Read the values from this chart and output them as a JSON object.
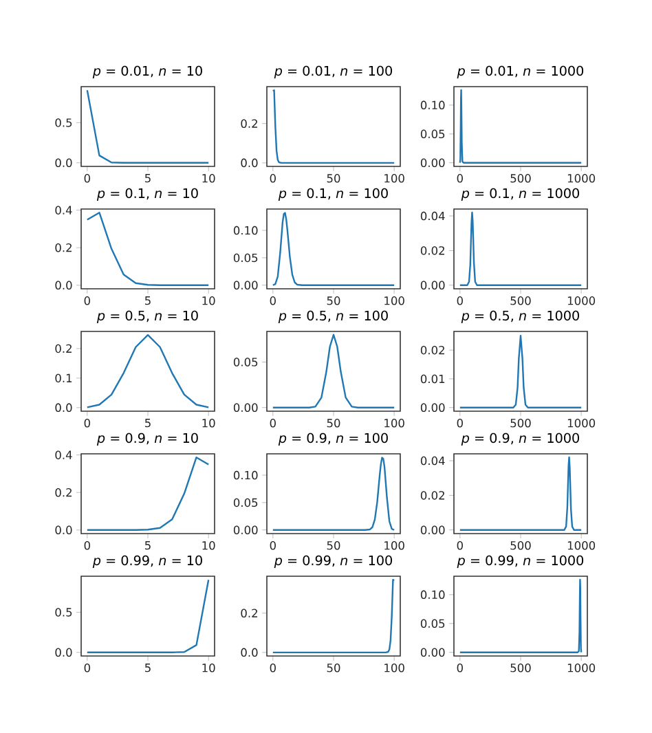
{
  "chart_data": [
    {
      "type": "line",
      "title": "*p* = 0.01, *n* = 10",
      "color": "#1f77b4",
      "x": [
        0,
        1,
        2,
        3,
        4,
        5,
        6,
        7,
        8,
        9,
        10
      ],
      "values": [
        0.904,
        0.091,
        0.004,
        0,
        0,
        0,
        0,
        0,
        0,
        0,
        0
      ],
      "xlim": [
        -0.5,
        10.5
      ],
      "ylim": [
        -0.045,
        0.949
      ],
      "xticks": [
        0,
        5,
        10
      ],
      "yticks": [
        {
          "value": 0,
          "label": "0.0"
        },
        {
          "value": 0.5,
          "label": "0.5"
        }
      ]
    },
    {
      "type": "line",
      "title": "*p* = 0.01, *n* = 100",
      "color": "#1f77b4",
      "x": [
        0,
        1,
        2,
        3,
        4,
        5,
        7,
        100
      ],
      "values": [
        0.366,
        0.37,
        0.185,
        0.061,
        0.015,
        0.003,
        0,
        0
      ],
      "xlim": [
        -5,
        105
      ],
      "ylim": [
        -0.018,
        0.388
      ],
      "xticks": [
        0,
        50,
        100
      ],
      "yticks": [
        {
          "value": 0,
          "label": "0.0"
        },
        {
          "value": 0.2,
          "label": "0.2"
        }
      ]
    },
    {
      "type": "line",
      "title": "*p* = 0.01, *n* = 1000",
      "color": "#1f77b4",
      "x": [
        0,
        3,
        6,
        8,
        10,
        12,
        15,
        20,
        30,
        1000
      ],
      "values": [
        0,
        0.007,
        0.063,
        0.113,
        0.126,
        0.095,
        0.035,
        0.002,
        0,
        0
      ],
      "xlim": [
        -50,
        1050
      ],
      "ylim": [
        -0.0063,
        0.132
      ],
      "xticks": [
        0,
        500,
        1000
      ],
      "yticks": [
        {
          "value": 0,
          "label": "0.00"
        },
        {
          "value": 0.05,
          "label": "0.05"
        },
        {
          "value": 0.1,
          "label": "0.10"
        }
      ]
    },
    {
      "type": "line",
      "title": "*p* = 0.1, *n* = 10",
      "color": "#1f77b4",
      "x": [
        0,
        1,
        2,
        3,
        4,
        5,
        6,
        7,
        8,
        9,
        10
      ],
      "values": [
        0.349,
        0.387,
        0.194,
        0.057,
        0.011,
        0.002,
        0,
        0,
        0,
        0,
        0
      ],
      "xlim": [
        -0.5,
        10.5
      ],
      "ylim": [
        -0.019,
        0.406
      ],
      "xticks": [
        0,
        5,
        10
      ],
      "yticks": [
        {
          "value": 0,
          "label": "0.0"
        },
        {
          "value": 0.2,
          "label": "0.2"
        },
        {
          "value": 0.4,
          "label": "0.4"
        }
      ]
    },
    {
      "type": "line",
      "title": "*p* = 0.1, *n* = 100",
      "color": "#1f77b4",
      "x": [
        0,
        2,
        4,
        6,
        8,
        9,
        10,
        11,
        12,
        14,
        16,
        18,
        20,
        24,
        100
      ],
      "values": [
        0,
        0.002,
        0.016,
        0.059,
        0.115,
        0.13,
        0.132,
        0.12,
        0.099,
        0.051,
        0.019,
        0.005,
        0.001,
        0,
        0
      ],
      "xlim": [
        -5,
        105
      ],
      "ylim": [
        -0.0066,
        0.139
      ],
      "xticks": [
        0,
        50,
        100
      ],
      "yticks": [
        {
          "value": 0,
          "label": "0.00"
        },
        {
          "value": 0.05,
          "label": "0.05"
        },
        {
          "value": 0.1,
          "label": "0.10"
        }
      ]
    },
    {
      "type": "line",
      "title": "*p* = 0.1, *n* = 1000",
      "color": "#1f77b4",
      "x": [
        0,
        60,
        75,
        85,
        90,
        95,
        100,
        105,
        110,
        115,
        125,
        140,
        1000
      ],
      "values": [
        0,
        0,
        0.002,
        0.012,
        0.024,
        0.036,
        0.042,
        0.037,
        0.025,
        0.013,
        0.002,
        0,
        0
      ],
      "xlim": [
        -50,
        1050
      ],
      "ylim": [
        -0.0021,
        0.044
      ],
      "xticks": [
        0,
        500,
        1000
      ],
      "yticks": [
        {
          "value": 0,
          "label": "0.00"
        },
        {
          "value": 0.02,
          "label": "0.02"
        },
        {
          "value": 0.04,
          "label": "0.04"
        }
      ]
    },
    {
      "type": "line",
      "title": "*p* = 0.5, *n* = 10",
      "color": "#1f77b4",
      "x": [
        0,
        1,
        2,
        3,
        4,
        5,
        6,
        7,
        8,
        9,
        10
      ],
      "values": [
        0.001,
        0.01,
        0.044,
        0.117,
        0.205,
        0.246,
        0.205,
        0.117,
        0.044,
        0.01,
        0.001
      ],
      "xlim": [
        -0.5,
        10.5
      ],
      "ylim": [
        -0.012,
        0.258
      ],
      "xticks": [
        0,
        5,
        10
      ],
      "yticks": [
        {
          "value": 0,
          "label": "0.0"
        },
        {
          "value": 0.1,
          "label": "0.1"
        },
        {
          "value": 0.2,
          "label": "0.2"
        }
      ]
    },
    {
      "type": "line",
      "title": "*p* = 0.5, *n* = 100",
      "color": "#1f77b4",
      "x": [
        0,
        30,
        35,
        40,
        44,
        47,
        50,
        53,
        56,
        60,
        65,
        70,
        100
      ],
      "values": [
        0,
        0,
        0.001,
        0.011,
        0.039,
        0.067,
        0.08,
        0.067,
        0.039,
        0.011,
        0.001,
        0,
        0
      ],
      "xlim": [
        -5,
        105
      ],
      "ylim": [
        -0.004,
        0.0836
      ],
      "xticks": [
        0,
        50,
        100
      ],
      "yticks": [
        {
          "value": 0,
          "label": "0.00"
        },
        {
          "value": 0.05,
          "label": "0.05"
        }
      ]
    },
    {
      "type": "line",
      "title": "*p* = 0.5, *n* = 1000",
      "color": "#1f77b4",
      "x": [
        0,
        440,
        460,
        475,
        485,
        500,
        515,
        525,
        540,
        560,
        1000
      ],
      "values": [
        0,
        0,
        0.001,
        0.007,
        0.017,
        0.025,
        0.017,
        0.007,
        0.001,
        0,
        0
      ],
      "xlim": [
        -50,
        1050
      ],
      "ylim": [
        -0.00126,
        0.0265
      ],
      "xticks": [
        0,
        500,
        1000
      ],
      "yticks": [
        {
          "value": 0,
          "label": "0.00"
        },
        {
          "value": 0.01,
          "label": "0.01"
        },
        {
          "value": 0.02,
          "label": "0.02"
        }
      ]
    },
    {
      "type": "line",
      "title": "*p* = 0.9, *n* = 10",
      "color": "#1f77b4",
      "x": [
        0,
        1,
        2,
        3,
        4,
        5,
        6,
        7,
        8,
        9,
        10
      ],
      "values": [
        0,
        0,
        0,
        0,
        0,
        0.002,
        0.011,
        0.057,
        0.194,
        0.387,
        0.349
      ],
      "xlim": [
        -0.5,
        10.5
      ],
      "ylim": [
        -0.019,
        0.406
      ],
      "xticks": [
        0,
        5,
        10
      ],
      "yticks": [
        {
          "value": 0,
          "label": "0.0"
        },
        {
          "value": 0.2,
          "label": "0.2"
        },
        {
          "value": 0.4,
          "label": "0.4"
        }
      ]
    },
    {
      "type": "line",
      "title": "*p* = 0.9, *n* = 100",
      "color": "#1f77b4",
      "x": [
        0,
        76,
        80,
        82,
        84,
        86,
        88,
        89,
        90,
        91,
        92,
        94,
        96,
        98,
        100
      ],
      "values": [
        0,
        0,
        0.001,
        0.005,
        0.019,
        0.051,
        0.099,
        0.12,
        0.132,
        0.13,
        0.115,
        0.059,
        0.016,
        0.002,
        0
      ],
      "xlim": [
        -5,
        105
      ],
      "ylim": [
        -0.0066,
        0.139
      ],
      "xticks": [
        0,
        50,
        100
      ],
      "yticks": [
        {
          "value": 0,
          "label": "0.00"
        },
        {
          "value": 0.05,
          "label": "0.05"
        },
        {
          "value": 0.1,
          "label": "0.10"
        }
      ]
    },
    {
      "type": "line",
      "title": "*p* = 0.9, *n* = 1000",
      "color": "#1f77b4",
      "x": [
        0,
        860,
        875,
        885,
        890,
        895,
        900,
        905,
        910,
        915,
        925,
        940,
        1000
      ],
      "values": [
        0,
        0,
        0.002,
        0.013,
        0.025,
        0.037,
        0.042,
        0.036,
        0.024,
        0.012,
        0.002,
        0,
        0
      ],
      "xlim": [
        -50,
        1050
      ],
      "ylim": [
        -0.0021,
        0.044
      ],
      "xticks": [
        0,
        500,
        1000
      ],
      "yticks": [
        {
          "value": 0,
          "label": "0.00"
        },
        {
          "value": 0.02,
          "label": "0.02"
        },
        {
          "value": 0.04,
          "label": "0.04"
        }
      ]
    },
    {
      "type": "line",
      "title": "*p* = 0.99, *n* = 10",
      "color": "#1f77b4",
      "x": [
        0,
        1,
        2,
        3,
        4,
        5,
        6,
        7,
        8,
        9,
        10
      ],
      "values": [
        0,
        0,
        0,
        0,
        0,
        0,
        0,
        0,
        0.004,
        0.091,
        0.904
      ],
      "xlim": [
        -0.5,
        10.5
      ],
      "ylim": [
        -0.045,
        0.949
      ],
      "xticks": [
        0,
        5,
        10
      ],
      "yticks": [
        {
          "value": 0,
          "label": "0.0"
        },
        {
          "value": 0.5,
          "label": "0.5"
        }
      ]
    },
    {
      "type": "line",
      "title": "*p* = 0.99, *n* = 100",
      "color": "#1f77b4",
      "x": [
        0,
        93,
        95,
        96,
        97,
        98,
        99,
        100
      ],
      "values": [
        0,
        0,
        0.003,
        0.015,
        0.061,
        0.185,
        0.37,
        0.366
      ],
      "xlim": [
        -5,
        105
      ],
      "ylim": [
        -0.018,
        0.388
      ],
      "xticks": [
        0,
        50,
        100
      ],
      "yticks": [
        {
          "value": 0,
          "label": "0.0"
        },
        {
          "value": 0.2,
          "label": "0.2"
        }
      ]
    },
    {
      "type": "line",
      "title": "*p* = 0.99, *n* = 1000",
      "color": "#1f77b4",
      "x": [
        0,
        970,
        980,
        985,
        988,
        990,
        992,
        994,
        997,
        1000
      ],
      "values": [
        0,
        0,
        0.002,
        0.035,
        0.095,
        0.126,
        0.113,
        0.063,
        0.007,
        0
      ],
      "xlim": [
        -50,
        1050
      ],
      "ylim": [
        -0.0063,
        0.132
      ],
      "xticks": [
        0,
        500,
        1000
      ],
      "yticks": [
        {
          "value": 0,
          "label": "0.00"
        },
        {
          "value": 0.05,
          "label": "0.05"
        },
        {
          "value": 0.1,
          "label": "0.10"
        }
      ]
    }
  ]
}
